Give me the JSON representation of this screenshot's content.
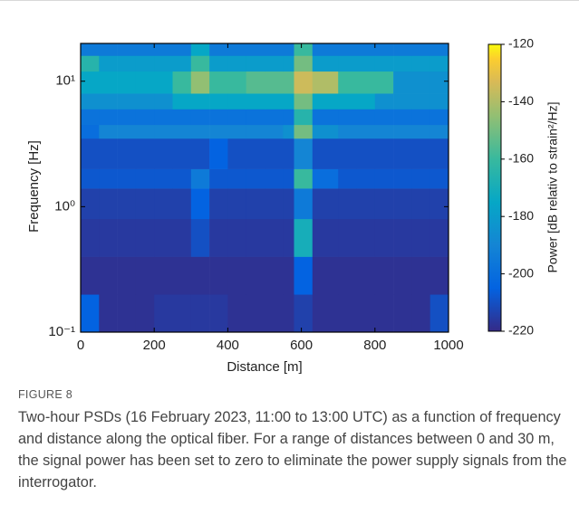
{
  "chart_data": {
    "type": "heatmap",
    "xlabel": "Distance [m]",
    "ylabel": "Frequency [Hz]",
    "xlim": [
      0,
      1000
    ],
    "xticks": [
      0,
      200,
      400,
      600,
      800,
      1000
    ],
    "ylim": [
      0.1,
      20
    ],
    "log_y": true,
    "yticks": [
      {
        "value": 0.1,
        "label": "10⁻¹"
      },
      {
        "value": 1,
        "label": "10⁰"
      },
      {
        "value": 10,
        "label": "10¹"
      }
    ],
    "x_edges": [
      0,
      50,
      100,
      150,
      200,
      250,
      300,
      350,
      400,
      450,
      500,
      550,
      580,
      630,
      700,
      750,
      800,
      850,
      900,
      950,
      1000
    ],
    "y_edges": [
      0.1,
      0.2,
      0.4,
      0.8,
      1.4,
      2,
      3.5,
      4.5,
      6,
      8,
      12,
      16,
      20
    ],
    "z": [
      [
        -205,
        -218,
        -218,
        -218,
        -216,
        -216,
        -216,
        -216,
        -218,
        -218,
        -218,
        -218,
        -214,
        -218,
        -218,
        -218,
        -218,
        -218,
        -218,
        -210
      ],
      [
        -218,
        -218,
        -218,
        -218,
        -218,
        -218,
        -218,
        -218,
        -218,
        -218,
        -218,
        -218,
        -205,
        -218,
        -218,
        -218,
        -218,
        -218,
        -218,
        -218
      ],
      [
        -216,
        -216,
        -216,
        -216,
        -216,
        -216,
        -210,
        -216,
        -216,
        -216,
        -216,
        -216,
        -170,
        -216,
        -216,
        -216,
        -216,
        -216,
        -216,
        -216
      ],
      [
        -214,
        -214,
        -214,
        -214,
        -214,
        -214,
        -205,
        -214,
        -214,
        -214,
        -214,
        -214,
        -195,
        -214,
        -214,
        -214,
        -214,
        -214,
        -214,
        -214
      ],
      [
        -208,
        -208,
        -208,
        -208,
        -208,
        -208,
        -195,
        -208,
        -208,
        -208,
        -208,
        -208,
        -160,
        -200,
        -208,
        -208,
        -208,
        -208,
        -208,
        -208
      ],
      [
        -210,
        -210,
        -210,
        -210,
        -210,
        -210,
        -210,
        -205,
        -210,
        -210,
        -210,
        -210,
        -190,
        -210,
        -210,
        -210,
        -210,
        -210,
        -210,
        -210
      ],
      [
        -200,
        -190,
        -190,
        -190,
        -190,
        -190,
        -190,
        -190,
        -190,
        -190,
        -190,
        -185,
        -150,
        -185,
        -190,
        -190,
        -190,
        -190,
        -190,
        -190
      ],
      [
        -198,
        -198,
        -198,
        -198,
        -198,
        -198,
        -198,
        -198,
        -198,
        -198,
        -198,
        -198,
        -165,
        -198,
        -198,
        -198,
        -198,
        -198,
        -198,
        -198
      ],
      [
        -185,
        -185,
        -185,
        -185,
        -185,
        -175,
        -175,
        -175,
        -175,
        -175,
        -175,
        -175,
        -150,
        -175,
        -175,
        -175,
        -185,
        -185,
        -185,
        -185
      ],
      [
        -175,
        -175,
        -175,
        -175,
        -175,
        -160,
        -145,
        -160,
        -160,
        -155,
        -155,
        -155,
        -135,
        -140,
        -160,
        -160,
        -160,
        -185,
        -185,
        -185
      ],
      [
        -165,
        -180,
        -180,
        -180,
        -180,
        -180,
        -160,
        -180,
        -180,
        -180,
        -180,
        -180,
        -150,
        -180,
        -180,
        -180,
        -180,
        -180,
        -180,
        -180
      ],
      [
        -195,
        -195,
        -195,
        -195,
        -195,
        -195,
        -175,
        -195,
        -195,
        -195,
        -195,
        -195,
        -160,
        -195,
        -195,
        -195,
        -195,
        -195,
        -195,
        -195
      ]
    ],
    "colorbar": {
      "label": "Power [dB relativ to strain²/Hz]",
      "clim": [
        -220,
        -120
      ],
      "ticks": [
        -220,
        -200,
        -180,
        -160,
        -140,
        -120
      ]
    }
  },
  "caption": {
    "label": "FIGURE 8",
    "text": "Two-hour PSDs (16 February 2023, 11:00 to 13:00 UTC) as a function of frequency and distance along the optical fiber. For a range of distances between 0 and 30 m, the signal power has been set to zero to eliminate the power supply signals from the interrogator."
  }
}
